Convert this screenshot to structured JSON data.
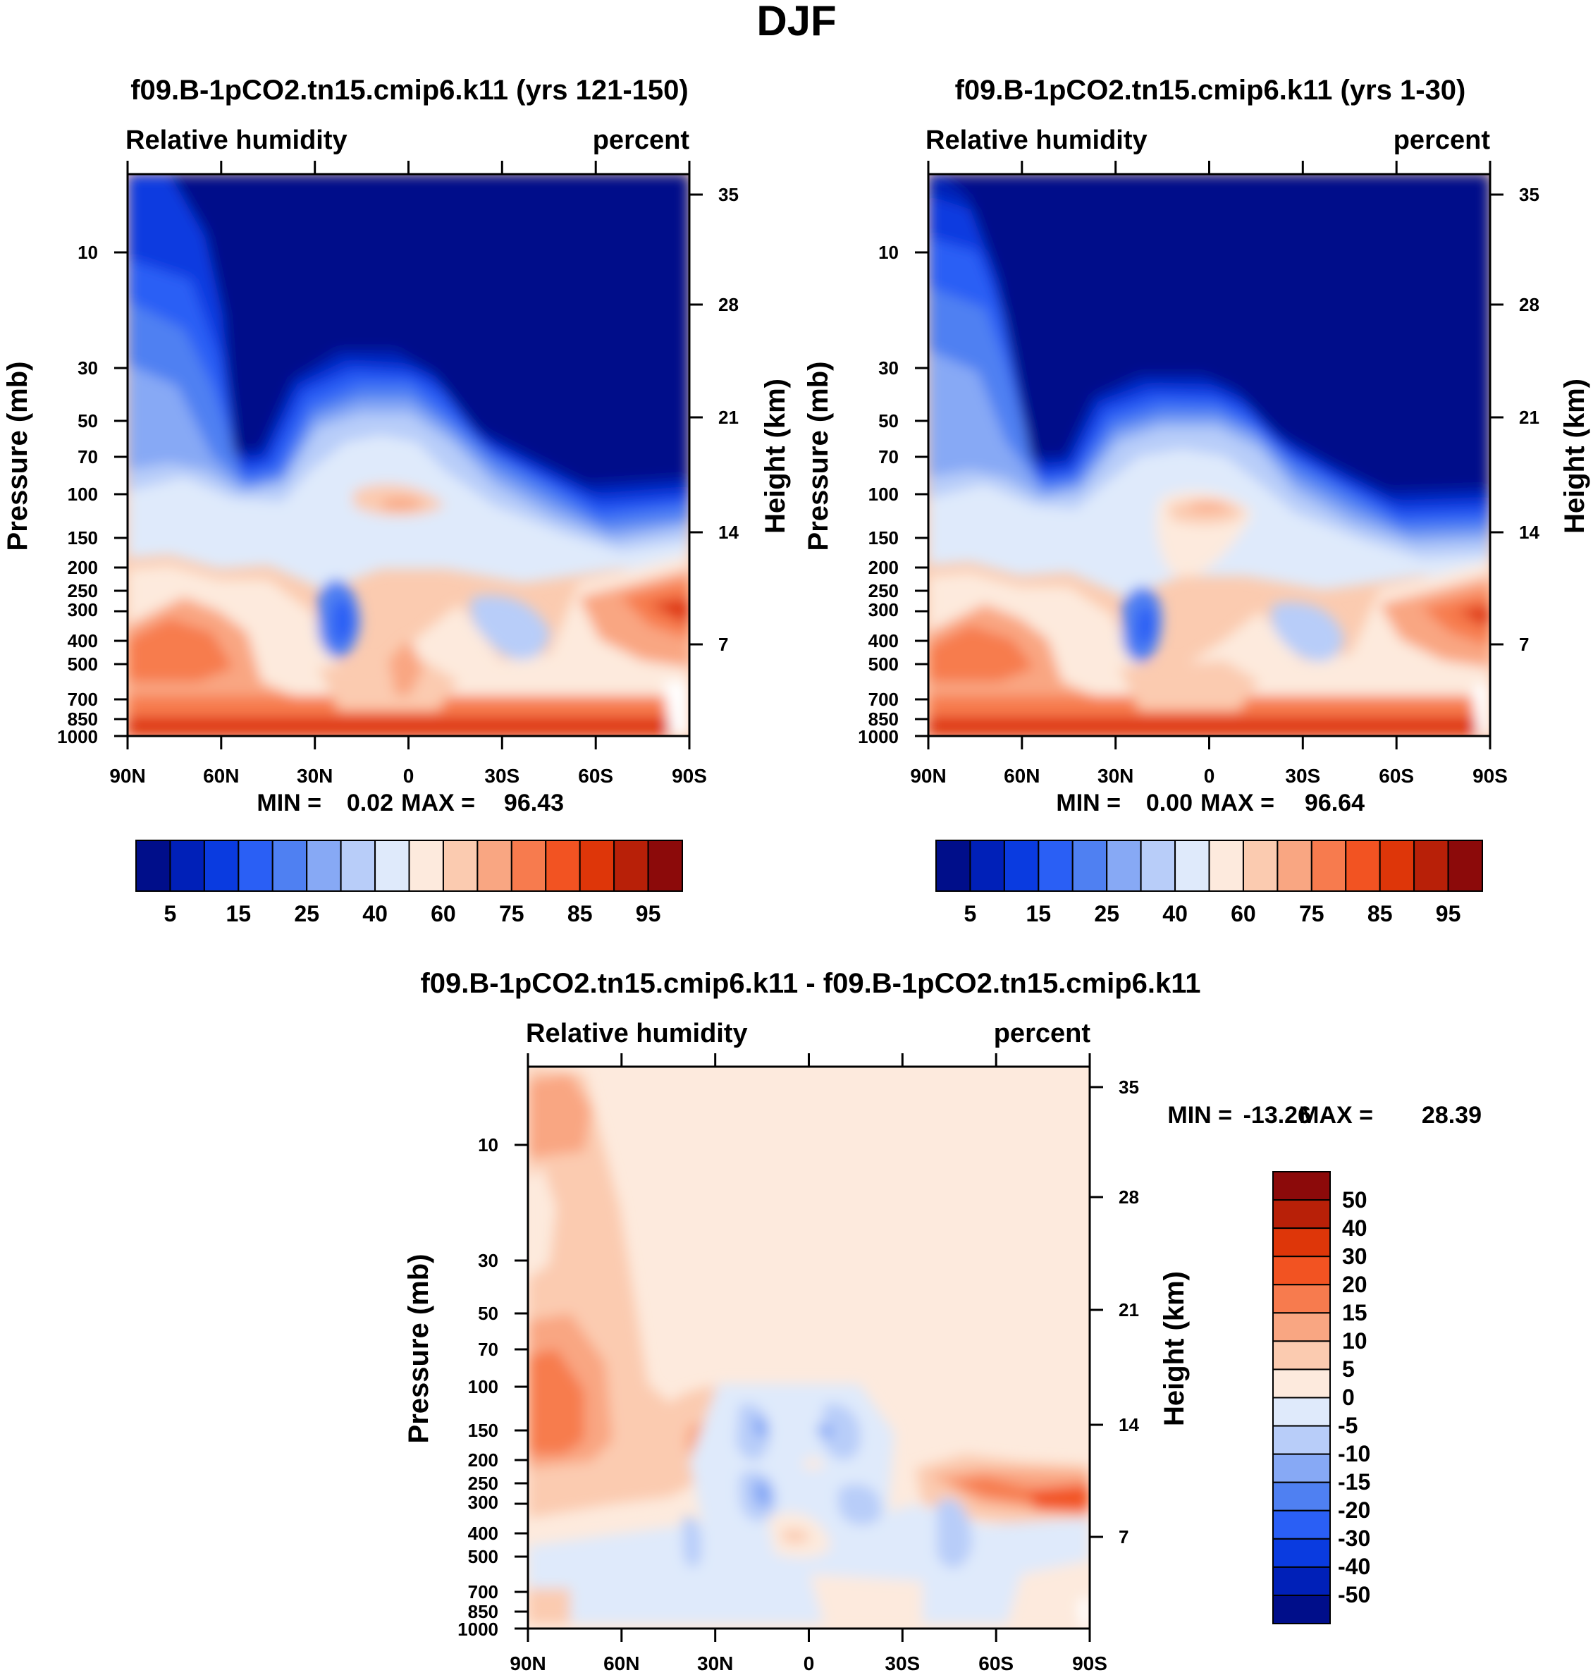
{
  "figure": {
    "title": "DJF"
  },
  "chart_data": [
    {
      "type": "contour",
      "panel": "top-left",
      "title": "f09.B-1pCO2.tn15.cmip6.k11 (yrs 121-150)",
      "variable": "Relative humidity",
      "units": "percent",
      "ylabel": "Pressure (mb)",
      "y2label": "Height (km)",
      "x_ticks": [
        "90N",
        "60N",
        "30N",
        "0",
        "30S",
        "60S",
        "90S"
      ],
      "y_ticks": [
        "10",
        "30",
        "50",
        "70",
        "100",
        "150",
        "200",
        "250",
        "300",
        "400",
        "500",
        "700",
        "850",
        "1000"
      ],
      "y2_ticks": [
        "35",
        "28",
        "21",
        "14",
        "7"
      ],
      "stats": {
        "min_label": "MIN =",
        "min": "0.02",
        "max_label": "MAX =",
        "max": "96.43"
      },
      "colorbar": {
        "orientation": "horizontal",
        "labels": [
          "5",
          "15",
          "25",
          "40",
          "60",
          "75",
          "85",
          "95"
        ],
        "colors": [
          "#000e8a",
          "#0020b8",
          "#0a3be0",
          "#2a5ff5",
          "#4f80f2",
          "#87a9f5",
          "#b8cdf9",
          "#dfeafb",
          "#fdeadd",
          "#fbcbb0",
          "#f9a682",
          "#f77b4e",
          "#f25322",
          "#de3609",
          "#b82008",
          "#8c0a0a"
        ]
      }
    },
    {
      "type": "contour",
      "panel": "top-right",
      "title": "f09.B-1pCO2.tn15.cmip6.k11 (yrs 1-30)",
      "variable": "Relative humidity",
      "units": "percent",
      "ylabel": "Pressure (mb)",
      "y2label": "Height (km)",
      "x_ticks": [
        "90N",
        "60N",
        "30N",
        "0",
        "30S",
        "60S",
        "90S"
      ],
      "y_ticks": [
        "10",
        "30",
        "50",
        "70",
        "100",
        "150",
        "200",
        "250",
        "300",
        "400",
        "500",
        "700",
        "850",
        "1000"
      ],
      "y2_ticks": [
        "35",
        "28",
        "21",
        "14",
        "7"
      ],
      "stats": {
        "min_label": "MIN =",
        "min": "0.00",
        "max_label": "MAX =",
        "max": "96.64"
      },
      "colorbar": {
        "orientation": "horizontal",
        "labels": [
          "5",
          "15",
          "25",
          "40",
          "60",
          "75",
          "85",
          "95"
        ],
        "colors": [
          "#000e8a",
          "#0020b8",
          "#0a3be0",
          "#2a5ff5",
          "#4f80f2",
          "#87a9f5",
          "#b8cdf9",
          "#dfeafb",
          "#fdeadd",
          "#fbcbb0",
          "#f9a682",
          "#f77b4e",
          "#f25322",
          "#de3609",
          "#b82008",
          "#8c0a0a"
        ]
      }
    },
    {
      "type": "contour",
      "panel": "bottom",
      "title": "f09.B-1pCO2.tn15.cmip6.k11 - f09.B-1pCO2.tn15.cmip6.k11",
      "variable": "Relative humidity",
      "units": "percent",
      "ylabel": "Pressure (mb)",
      "y2label": "Height (km)",
      "x_ticks": [
        "90N",
        "60N",
        "30N",
        "0",
        "30S",
        "60S",
        "90S"
      ],
      "y_ticks": [
        "10",
        "30",
        "50",
        "70",
        "100",
        "150",
        "200",
        "250",
        "300",
        "400",
        "500",
        "700",
        "850",
        "1000"
      ],
      "y2_ticks": [
        "35",
        "28",
        "21",
        "14",
        "7"
      ],
      "stats": {
        "min_label": "MIN =",
        "min": "-13.26",
        "max_label": "MAX =",
        "max": "28.39"
      },
      "colorbar": {
        "orientation": "vertical",
        "labels": [
          "50",
          "40",
          "30",
          "20",
          "15",
          "10",
          "5",
          "0",
          "-5",
          "-10",
          "-15",
          "-20",
          "-30",
          "-40",
          "-50"
        ],
        "colors": [
          "#8c0a0a",
          "#b82008",
          "#de3609",
          "#f25322",
          "#f77b4e",
          "#f9a682",
          "#fbcbb0",
          "#fdeadd",
          "#dfeafb",
          "#b8cdf9",
          "#87a9f5",
          "#4f80f2",
          "#2a5ff5",
          "#0a3be0",
          "#0020b8",
          "#000e8a"
        ]
      }
    }
  ]
}
